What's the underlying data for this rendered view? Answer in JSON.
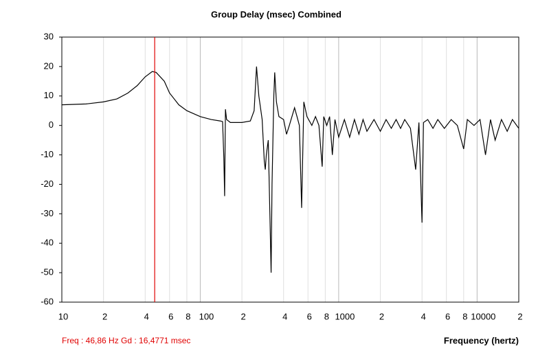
{
  "chart_data": {
    "type": "line",
    "title": "Group Delay (msec)    Combined",
    "x_label": "Frequency (hertz)",
    "annotation": "Freq : 46,86 Hz    Gd : 16,4771 msec",
    "cursor_x": 46.86,
    "cursor_color": "#e00000",
    "log_x": true,
    "color": "#000000",
    "xlim": [
      10,
      20000
    ],
    "ylim": [
      -60,
      30
    ],
    "yticks": [
      -60,
      -50,
      -40,
      -30,
      -20,
      -10,
      0,
      10,
      20,
      30
    ],
    "xticks": [
      10,
      {
        "value": 20,
        "label": "2"
      },
      {
        "value": 40,
        "label": "4"
      },
      {
        "value": 60,
        "label": "6"
      },
      {
        "value": 80,
        "label": "8"
      },
      100,
      {
        "value": 200,
        "label": "2"
      },
      {
        "value": 400,
        "label": "4"
      },
      {
        "value": 600,
        "label": "6"
      },
      {
        "value": 800,
        "label": "8"
      },
      1000,
      {
        "value": 2000,
        "label": "2"
      },
      {
        "value": 4000,
        "label": "4"
      },
      {
        "value": 6000,
        "label": "6"
      },
      {
        "value": 8000,
        "label": "8"
      },
      10000,
      {
        "value": 20000,
        "label": "2"
      }
    ],
    "x": [
      10,
      15,
      20,
      25,
      30,
      35,
      40,
      45,
      48,
      55,
      60,
      70,
      80,
      100,
      120,
      140,
      145,
      148,
      150,
      152,
      155,
      165,
      200,
      230,
      245,
      255,
      265,
      280,
      290,
      295,
      300,
      310,
      320,
      325,
      330,
      340,
      345,
      355,
      370,
      400,
      420,
      440,
      480,
      500,
      520,
      540,
      560,
      590,
      640,
      680,
      720,
      760,
      780,
      820,
      860,
      900,
      940,
      1000,
      1100,
      1200,
      1300,
      1400,
      1500,
      1600,
      1800,
      2000,
      2200,
      2400,
      2600,
      2800,
      3000,
      3300,
      3600,
      3800,
      4000,
      4100,
      4400,
      4800,
      5200,
      5800,
      6500,
      7200,
      8000,
      8500,
      9500,
      10500,
      11500,
      12500,
      13500,
      15000,
      16500,
      18000,
      20000
    ],
    "values": [
      7,
      7.3,
      8,
      9,
      11,
      13.5,
      16.5,
      18.3,
      18,
      15,
      11,
      7,
      5,
      3,
      2,
      1.5,
      1.3,
      -11,
      -24,
      5.5,
      2,
      1,
      1,
      1.5,
      5,
      20,
      10,
      2,
      -12,
      -15,
      -10,
      -5,
      -35,
      -50,
      -20,
      10,
      18,
      8,
      3,
      2,
      -3,
      0,
      6,
      3,
      0,
      -28,
      8,
      3,
      0,
      3,
      0,
      -14,
      3,
      0,
      3,
      -10,
      2,
      -4,
      2,
      -4,
      2,
      -3,
      2,
      -2,
      2,
      -2,
      2,
      -1,
      2,
      -1,
      2,
      -1,
      -15,
      1,
      -33,
      1,
      2,
      -1,
      2,
      -1,
      2,
      0,
      -8,
      2,
      0,
      2,
      -10,
      2,
      -5,
      2,
      -2,
      2,
      -1
    ]
  }
}
